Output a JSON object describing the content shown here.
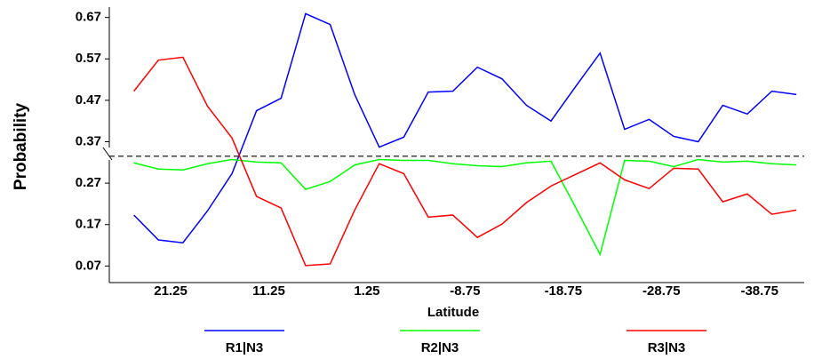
{
  "chart_data": {
    "type": "line",
    "x_label": "Latitude",
    "y_label": "Probability",
    "x": [
      25,
      22.5,
      20,
      17.5,
      15,
      12.5,
      10,
      7.5,
      5,
      2.5,
      0,
      -2.5,
      -5,
      -7.5,
      -10,
      -12.5,
      -15,
      -17.5,
      -20,
      -22.5,
      -25,
      -27.5,
      -30,
      -32.5,
      -35,
      -37.5,
      -40,
      -42.5
    ],
    "series": [
      {
        "name": "R1|N3",
        "color": "#0000ff",
        "values": [
          0.193,
          0.133,
          0.126,
          0.203,
          0.293,
          0.445,
          0.475,
          0.679,
          0.653,
          0.484,
          0.357,
          0.381,
          0.49,
          0.492,
          0.55,
          0.522,
          0.458,
          0.42,
          0.503,
          0.584,
          0.4,
          0.424,
          0.383,
          0.37,
          0.458,
          0.437,
          0.492,
          0.484
        ]
      },
      {
        "name": "R2|N3",
        "color": "#00ff00",
        "values": [
          0.319,
          0.304,
          0.302,
          0.317,
          0.327,
          0.321,
          0.319,
          0.255,
          0.274,
          0.314,
          0.327,
          0.325,
          0.325,
          0.317,
          0.312,
          0.31,
          0.319,
          0.323,
          0.212,
          0.098,
          0.325,
          0.323,
          0.31,
          0.327,
          0.321,
          0.323,
          0.317,
          0.314
        ]
      },
      {
        "name": "R3|N3",
        "color": "#ff0000",
        "values": [
          0.492,
          0.567,
          0.574,
          0.456,
          0.379,
          0.238,
          0.21,
          0.071,
          0.075,
          0.205,
          0.317,
          0.293,
          0.188,
          0.193,
          0.139,
          0.171,
          0.223,
          0.263,
          0.291,
          0.319,
          0.278,
          0.257,
          0.306,
          0.304,
          0.225,
          0.244,
          0.195,
          0.205
        ]
      }
    ],
    "reference_line": 0.335,
    "xlim": [
      27.5,
      -43.3
    ],
    "xticks": [
      21.25,
      11.25,
      1.25,
      -8.75,
      -18.75,
      -28.75,
      -38.75
    ],
    "ylim": [
      0.03,
      0.695
    ],
    "yticks": [
      0.07,
      0.17,
      0.27,
      0.37,
      0.47,
      0.57,
      0.67
    ]
  }
}
